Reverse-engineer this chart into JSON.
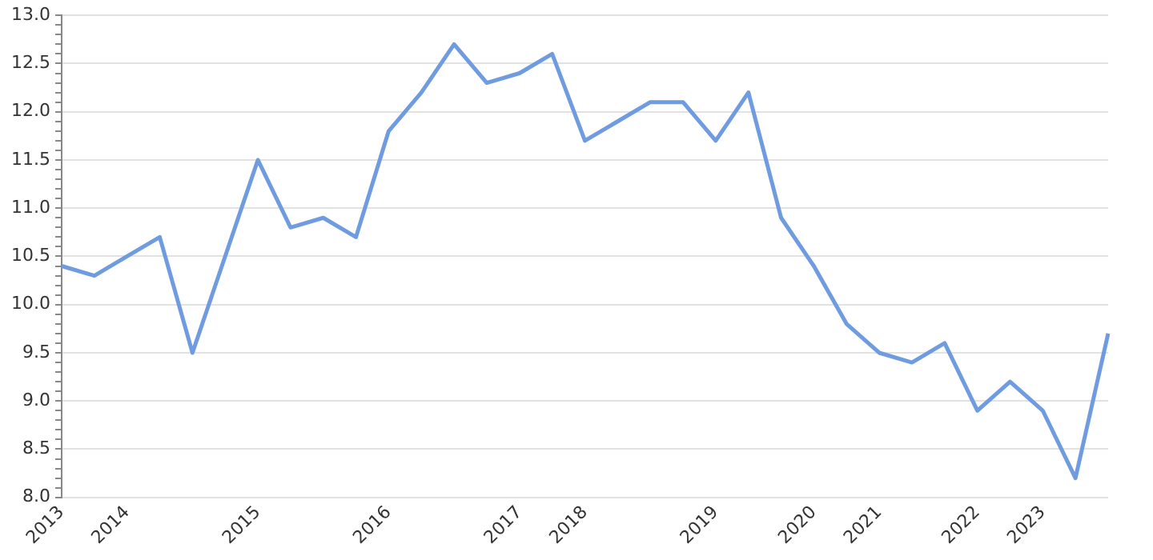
{
  "chart_data": {
    "type": "line",
    "categories": [
      "2013",
      null,
      "2014",
      null,
      null,
      null,
      "2015",
      null,
      null,
      null,
      "2016",
      null,
      null,
      null,
      "2017",
      null,
      "2018",
      null,
      null,
      null,
      "2019",
      null,
      null,
      "2020",
      null,
      "2021",
      null,
      null,
      "2022",
      null,
      "2023",
      null,
      null
    ],
    "series": [
      {
        "color": "#6f9be0",
        "values": [
          10.4,
          10.3,
          10.5,
          10.7,
          9.5,
          10.5,
          11.5,
          10.8,
          10.9,
          10.7,
          11.8,
          12.2,
          12.7,
          12.3,
          12.4,
          12.6,
          11.7,
          11.9,
          12.1,
          12.1,
          11.7,
          12.2,
          10.9,
          10.4,
          9.8,
          9.5,
          9.4,
          9.6,
          8.9,
          9.2,
          8.9,
          8.2,
          9.7
        ]
      }
    ],
    "ylim": [
      8,
      13
    ],
    "yticks": [
      {
        "value": 8,
        "label": "8.0"
      },
      {
        "value": 8.1,
        "label": null
      },
      {
        "value": 8.2,
        "label": null
      },
      {
        "value": 8.3,
        "label": null
      },
      {
        "value": 8.4,
        "label": null
      },
      {
        "value": 8.5,
        "label": "8.5"
      },
      {
        "value": 8.6,
        "label": null
      },
      {
        "value": 8.7,
        "label": null
      },
      {
        "value": 8.8,
        "label": null
      },
      {
        "value": 8.9,
        "label": null
      },
      {
        "value": 9,
        "label": "9.0"
      },
      {
        "value": 9.1,
        "label": null
      },
      {
        "value": 9.2,
        "label": null
      },
      {
        "value": 9.3,
        "label": null
      },
      {
        "value": 9.4,
        "label": null
      },
      {
        "value": 9.5,
        "label": "9.5"
      },
      {
        "value": 9.6,
        "label": null
      },
      {
        "value": 9.7,
        "label": null
      },
      {
        "value": 9.8,
        "label": null
      },
      {
        "value": 9.9,
        "label": null
      },
      {
        "value": 10,
        "label": "10.0"
      },
      {
        "value": 10.1,
        "label": null
      },
      {
        "value": 10.2,
        "label": null
      },
      {
        "value": 10.3,
        "label": null
      },
      {
        "value": 10.4,
        "label": null
      },
      {
        "value": 10.5,
        "label": "10.5"
      },
      {
        "value": 10.6,
        "label": null
      },
      {
        "value": 10.7,
        "label": null
      },
      {
        "value": 10.8,
        "label": null
      },
      {
        "value": 10.9,
        "label": null
      },
      {
        "value": 11,
        "label": "11.0"
      },
      {
        "value": 11.1,
        "label": null
      },
      {
        "value": 11.2,
        "label": null
      },
      {
        "value": 11.3,
        "label": null
      },
      {
        "value": 11.4,
        "label": null
      },
      {
        "value": 11.5,
        "label": "11.5"
      },
      {
        "value": 11.6,
        "label": null
      },
      {
        "value": 11.7,
        "label": null
      },
      {
        "value": 11.8,
        "label": null
      },
      {
        "value": 11.9,
        "label": null
      },
      {
        "value": 12,
        "label": "12.0"
      },
      {
        "value": 12.1,
        "label": null
      },
      {
        "value": 12.2,
        "label": null
      },
      {
        "value": 12.3,
        "label": null
      },
      {
        "value": 12.4,
        "label": null
      },
      {
        "value": 12.5,
        "label": "12.5"
      },
      {
        "value": 12.6,
        "label": null
      },
      {
        "value": 12.7,
        "label": null
      },
      {
        "value": 12.8,
        "label": null
      },
      {
        "value": 12.9,
        "label": null
      },
      {
        "value": 13,
        "label": "13.0"
      }
    ],
    "grid": "y",
    "legend": false,
    "marker": "none",
    "line_style": "solid"
  }
}
